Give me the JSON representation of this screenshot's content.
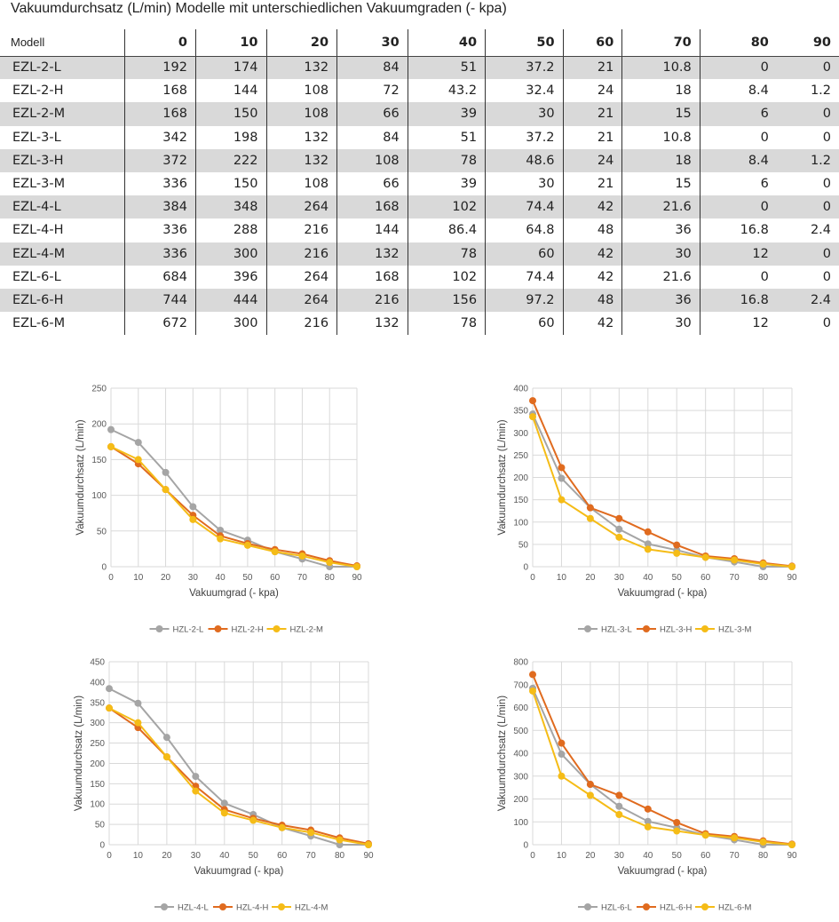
{
  "title": "Vakuumdurchsatz (L/min) Modelle mit unterschiedlichen Vakuumgraden (- kpa)",
  "table": {
    "header": [
      "Modell",
      "0",
      "10",
      "20",
      "30",
      "40",
      "50",
      "60",
      "70",
      "80",
      "90"
    ],
    "rows": [
      [
        "EZL-2-L",
        "192",
        "174",
        "132",
        "84",
        "51",
        "37.2",
        "21",
        "10.8",
        "0",
        "0"
      ],
      [
        "EZL-2-H",
        "168",
        "144",
        "108",
        "72",
        "43.2",
        "32.4",
        "24",
        "18",
        "8.4",
        "1.2"
      ],
      [
        "EZL-2-M",
        "168",
        "150",
        "108",
        "66",
        "39",
        "30",
        "21",
        "15",
        "6",
        "0"
      ],
      [
        "EZL-3-L",
        "342",
        "198",
        "132",
        "84",
        "51",
        "37.2",
        "21",
        "10.8",
        "0",
        "0"
      ],
      [
        "EZL-3-H",
        "372",
        "222",
        "132",
        "108",
        "78",
        "48.6",
        "24",
        "18",
        "8.4",
        "1.2"
      ],
      [
        "EZL-3-M",
        "336",
        "150",
        "108",
        "66",
        "39",
        "30",
        "21",
        "15",
        "6",
        "0"
      ],
      [
        "EZL-4-L",
        "384",
        "348",
        "264",
        "168",
        "102",
        "74.4",
        "42",
        "21.6",
        "0",
        "0"
      ],
      [
        "EZL-4-H",
        "336",
        "288",
        "216",
        "144",
        "86.4",
        "64.8",
        "48",
        "36",
        "16.8",
        "2.4"
      ],
      [
        "EZL-4-M",
        "336",
        "300",
        "216",
        "132",
        "78",
        "60",
        "42",
        "30",
        "12",
        "0"
      ],
      [
        "EZL-6-L",
        "684",
        "396",
        "264",
        "168",
        "102",
        "74.4",
        "42",
        "21.6",
        "0",
        "0"
      ],
      [
        "EZL-6-H",
        "744",
        "444",
        "264",
        "216",
        "156",
        "97.2",
        "48",
        "36",
        "16.8",
        "2.4"
      ],
      [
        "EZL-6-M",
        "672",
        "300",
        "216",
        "132",
        "78",
        "60",
        "42",
        "30",
        "12",
        "0"
      ]
    ]
  },
  "colors": {
    "L": "#a5a5a5",
    "H": "#e06b1f",
    "M": "#f5bc17",
    "grid": "#d9d9d9",
    "row_shade": "#d9d9d9"
  },
  "chart_data": [
    {
      "type": "line",
      "xlabel": "Vakuumgrad (- kpa)",
      "ylabel": "Vakuumdurchsatz (L/min)",
      "x": [
        0,
        10,
        20,
        30,
        40,
        50,
        60,
        70,
        80,
        90
      ],
      "ylim": [
        0,
        250
      ],
      "ystep": 50,
      "grid": true,
      "legend": "bottom",
      "series": [
        {
          "name": "HZL-2-L",
          "values": [
            192,
            174,
            132,
            84,
            51,
            37.2,
            21,
            10.8,
            0,
            0
          ]
        },
        {
          "name": "HZL-2-H",
          "values": [
            168,
            144,
            108,
            72,
            43.2,
            32.4,
            24,
            18,
            8.4,
            1.2
          ]
        },
        {
          "name": "HZL-2-M",
          "values": [
            168,
            150,
            108,
            66,
            39,
            30,
            21,
            15,
            6,
            0
          ]
        }
      ]
    },
    {
      "type": "line",
      "xlabel": "Vakuumgrad (- kpa)",
      "ylabel": "Vakuumdurchsatz (L/min)",
      "x": [
        0,
        10,
        20,
        30,
        40,
        50,
        60,
        70,
        80,
        90
      ],
      "ylim": [
        0,
        400
      ],
      "ystep": 50,
      "grid": true,
      "legend": "bottom",
      "series": [
        {
          "name": "HZL-3-L",
          "values": [
            342,
            198,
            132,
            84,
            51,
            37.2,
            21,
            10.8,
            0,
            0
          ]
        },
        {
          "name": "HZL-3-H",
          "values": [
            372,
            222,
            132,
            108,
            78,
            48.6,
            24,
            18,
            8.4,
            1.2
          ]
        },
        {
          "name": "HZL-3-M",
          "values": [
            336,
            150,
            108,
            66,
            39,
            30,
            21,
            15,
            6,
            0
          ]
        }
      ]
    },
    {
      "type": "line",
      "xlabel": "Vakuumgrad (- kpa)",
      "ylabel": "Vakuumdurchsatz (L/min)",
      "x": [
        0,
        10,
        20,
        30,
        40,
        50,
        60,
        70,
        80,
        90
      ],
      "ylim": [
        0,
        450
      ],
      "ystep": 50,
      "grid": true,
      "legend": "bottom",
      "series": [
        {
          "name": "HZL-4-L",
          "values": [
            384,
            348,
            264,
            168,
            102,
            74.4,
            42,
            21.6,
            0,
            0
          ]
        },
        {
          "name": "HZL-4-H",
          "values": [
            336,
            288,
            216,
            144,
            86.4,
            64.8,
            48,
            36,
            16.8,
            2.4
          ]
        },
        {
          "name": "HZL-4-M",
          "values": [
            336,
            300,
            216,
            132,
            78,
            60,
            42,
            30,
            12,
            0
          ]
        }
      ]
    },
    {
      "type": "line",
      "xlabel": "Vakuumgrad (- kpa)",
      "ylabel": "Vakuumdurchsatz (L/min)",
      "x": [
        0,
        10,
        20,
        30,
        40,
        50,
        60,
        70,
        80,
        90
      ],
      "ylim": [
        0,
        800
      ],
      "ystep": 100,
      "grid": true,
      "legend": "bottom",
      "series": [
        {
          "name": "HZL-6-L",
          "values": [
            684,
            396,
            264,
            168,
            102,
            74.4,
            42,
            21.6,
            0,
            0
          ]
        },
        {
          "name": "HZL-6-H",
          "values": [
            744,
            444,
            264,
            216,
            156,
            97.2,
            48,
            36,
            16.8,
            2.4
          ]
        },
        {
          "name": "HZL-6-M",
          "values": [
            672,
            300,
            216,
            132,
            78,
            60,
            42,
            30,
            12,
            0
          ]
        }
      ]
    }
  ]
}
